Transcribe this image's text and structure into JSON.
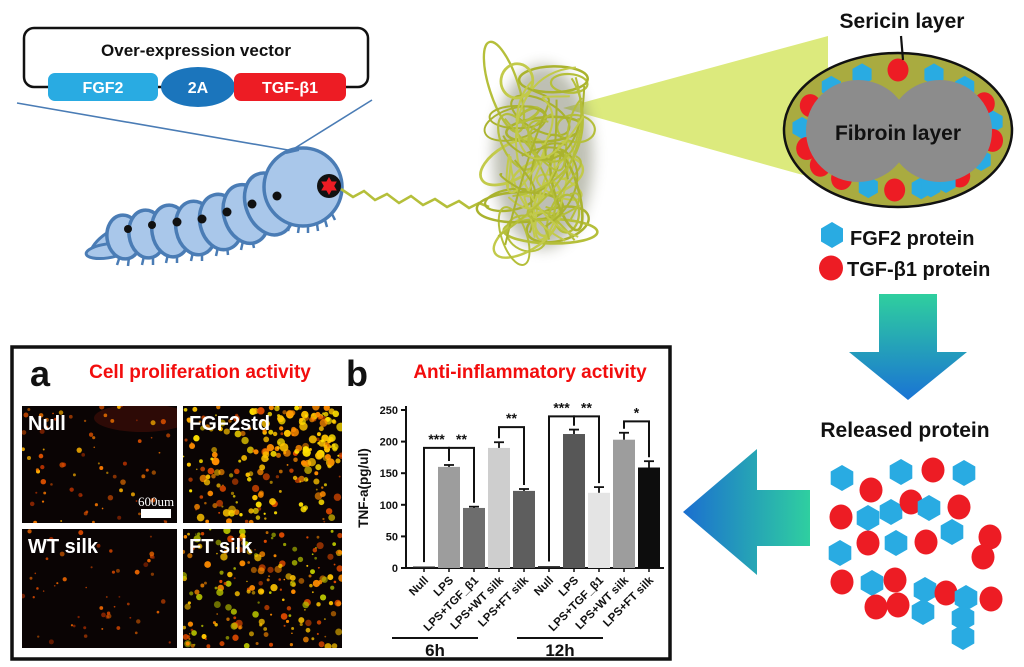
{
  "figure": {
    "colors": {
      "title_red": "#f20d0d",
      "fgf2_blue": "#29abe2",
      "tgfb1_red": "#ed1c24",
      "vector_2a_blue": "#1b75bc",
      "sericin_olive": "#a9ab40",
      "fibroin_gray": "#8c8c8c",
      "silk_thread": "#b5bf3a",
      "beam_green": "#dcea7d",
      "arrow_teal": "#2fcf9e",
      "arrow_blue": "#1a73d4",
      "worm_body": "#a9c7ea",
      "worm_outline": "#4a7cb5"
    },
    "vector": {
      "title": "Over-expression vector",
      "genes": [
        {
          "label": "FGF2",
          "color": "#29abe2"
        },
        {
          "label": "2A",
          "color": "#1b75bc"
        },
        {
          "label": "TGF-β1",
          "color": "#ed1c24"
        }
      ]
    },
    "section": {
      "sericin_label": "Sericin layer",
      "fibroin_label": "Fibroin layer"
    },
    "legend": [
      {
        "label": "FGF2 protein",
        "shape": "hexagon",
        "color": "#29abe2"
      },
      {
        "label": "TGF-β1 protein",
        "shape": "circle",
        "color": "#ed1c24"
      }
    ],
    "released_label": "Released protein",
    "panel_a": {
      "letter": "a",
      "title": "Cell proliferation activity",
      "images": [
        {
          "label": "Null",
          "density": "sparse"
        },
        {
          "label": "FGF2std",
          "density": "dense"
        },
        {
          "label": "WT silk",
          "density": "sparse"
        },
        {
          "label": "FT silk",
          "density": "dense"
        }
      ],
      "scale_bar": "600um"
    },
    "panel_b": {
      "letter": "b"
    }
  },
  "chart_data": {
    "type": "bar",
    "title": "Anti-inflammatory activity",
    "ylabel": "TNF-a(pg/ul)",
    "ylim": [
      0,
      250
    ],
    "yticks": [
      0,
      50,
      100,
      150,
      200,
      250
    ],
    "categories": [
      "Null",
      "LPS",
      "LPS+TGF_β1",
      "LPS+WT silk",
      "LPS+FT silk"
    ],
    "groups": [
      {
        "label": "6h",
        "values": [
          2,
          160,
          95,
          190,
          122
        ],
        "errors": [
          1,
          3,
          2,
          9,
          3
        ],
        "colors": [
          "#262626",
          "#9d9d9d",
          "#6d6d6d",
          "#cecece",
          "#5e5e5e"
        ]
      },
      {
        "label": "12h",
        "values": [
          3,
          212,
          119,
          203,
          159
        ],
        "errors": [
          1,
          7,
          9,
          11,
          10
        ],
        "colors": [
          "#262626",
          "#575757",
          "#e4e4e4",
          "#9d9d9d",
          "#0d0d0d"
        ]
      }
    ],
    "significance": [
      {
        "group": 0,
        "from": 0,
        "to": 1,
        "y": 190,
        "label": "***"
      },
      {
        "group": 0,
        "from": 1,
        "to": 2,
        "y": 190,
        "label": "**"
      },
      {
        "group": 0,
        "from": 3,
        "to": 4,
        "y": 223,
        "label": "**"
      },
      {
        "group": 1,
        "from": 0,
        "to": 1,
        "y": 240,
        "label": "***"
      },
      {
        "group": 1,
        "from": 1,
        "to": 2,
        "y": 240,
        "label": "**"
      },
      {
        "group": 1,
        "from": 3,
        "to": 4,
        "y": 232,
        "label": "*"
      }
    ],
    "legend_position": "none",
    "grid": false
  }
}
